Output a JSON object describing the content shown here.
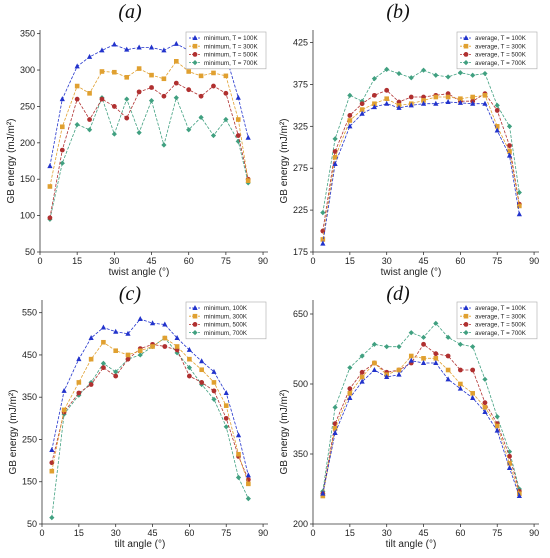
{
  "chart_data": [
    {
      "id": "a",
      "panel_label": "(a)",
      "type": "line",
      "xlabel": "twist angle (°)",
      "ylabel": "GB energy (mJ/m²)",
      "xlim": [
        0,
        92
      ],
      "ylim": [
        50,
        355
      ],
      "xticks": [
        0,
        15,
        30,
        45,
        60,
        75,
        90
      ],
      "yticks": [
        50,
        100,
        150,
        200,
        250,
        300,
        350
      ],
      "legend_position": "top-right",
      "x": [
        4,
        9,
        15,
        20,
        25,
        30,
        35,
        40,
        45,
        50,
        55,
        60,
        65,
        70,
        75,
        80,
        84
      ],
      "series": [
        {
          "name": "minimum, T = 100K",
          "color": "#2233cc",
          "marker": "triangle",
          "values": [
            168,
            260,
            305,
            318,
            327,
            335,
            328,
            331,
            331,
            327,
            336,
            327,
            333,
            330,
            320,
            262,
            207
          ]
        },
        {
          "name": "minimum, T = 300K",
          "color": "#e0a030",
          "marker": "square",
          "values": [
            140,
            222,
            278,
            268,
            298,
            297,
            290,
            302,
            293,
            288,
            312,
            298,
            292,
            296,
            292,
            232,
            148
          ]
        },
        {
          "name": "minimum, T = 500K",
          "color": "#b03030",
          "marker": "circle",
          "values": [
            97,
            190,
            260,
            232,
            260,
            250,
            234,
            270,
            276,
            264,
            282,
            273,
            264,
            278,
            268,
            210,
            150
          ]
        },
        {
          "name": "minimum, T = 700K",
          "color": "#40a080",
          "marker": "diamond",
          "values": [
            95,
            172,
            225,
            218,
            262,
            212,
            260,
            214,
            258,
            197,
            262,
            218,
            235,
            210,
            232,
            202,
            145
          ]
        }
      ]
    },
    {
      "id": "b",
      "panel_label": "(b)",
      "type": "line",
      "xlabel": "twist angle (°)",
      "ylabel": "GB energy (mJ/m²)",
      "xlim": [
        0,
        92
      ],
      "ylim": [
        175,
        440
      ],
      "xticks": [
        0,
        15,
        30,
        45,
        60,
        75,
        90
      ],
      "yticks": [
        175,
        225,
        275,
        325,
        375,
        425
      ],
      "legend_position": "top-right",
      "x": [
        4,
        9,
        15,
        20,
        25,
        30,
        35,
        40,
        45,
        50,
        55,
        60,
        65,
        70,
        75,
        80,
        84
      ],
      "series": [
        {
          "name": "average, T = 100K",
          "color": "#2233cc",
          "marker": "triangle",
          "values": [
            185,
            280,
            325,
            340,
            348,
            352,
            347,
            350,
            352,
            352,
            354,
            353,
            352,
            352,
            320,
            290,
            220
          ]
        },
        {
          "name": "average, T = 300K",
          "color": "#e0a030",
          "marker": "square",
          "values": [
            190,
            288,
            332,
            345,
            352,
            358,
            350,
            352,
            356,
            360,
            360,
            358,
            360,
            362,
            325,
            295,
            230
          ]
        },
        {
          "name": "average, T = 500K",
          "color": "#b03030",
          "marker": "circle",
          "values": [
            200,
            295,
            338,
            352,
            362,
            368,
            354,
            360,
            360,
            362,
            364,
            355,
            355,
            364,
            344,
            302,
            232
          ]
        },
        {
          "name": "average, T = 700K",
          "color": "#40a080",
          "marker": "diamond",
          "values": [
            222,
            310,
            362,
            355,
            382,
            393,
            388,
            383,
            392,
            386,
            384,
            389,
            386,
            388,
            350,
            325,
            246
          ]
        }
      ]
    },
    {
      "id": "c",
      "panel_label": "(c)",
      "type": "line",
      "xlabel": "tilt angle (°)",
      "ylabel": "GB energy (mJ/m²)",
      "xlim": [
        0,
        92
      ],
      "ylim": [
        50,
        580
      ],
      "xticks": [
        0,
        15,
        30,
        45,
        60,
        75,
        90
      ],
      "yticks": [
        50,
        150,
        250,
        350,
        450,
        550
      ],
      "legend_position": "top-right",
      "x": [
        4,
        9,
        15,
        20,
        25,
        30,
        35,
        40,
        45,
        50,
        55,
        60,
        65,
        70,
        75,
        80,
        84
      ],
      "series": [
        {
          "name": "minimum, 100K",
          "color": "#2233cc",
          "marker": "triangle",
          "values": [
            225,
            365,
            440,
            490,
            515,
            505,
            500,
            535,
            525,
            522,
            490,
            462,
            435,
            410,
            360,
            260,
            165
          ]
        },
        {
          "name": "minimum, 300K",
          "color": "#e0a030",
          "marker": "square",
          "values": [
            175,
            320,
            385,
            440,
            480,
            460,
            450,
            460,
            470,
            490,
            470,
            440,
            415,
            385,
            330,
            215,
            145
          ]
        },
        {
          "name": "minimum, 500K",
          "color": "#b03030",
          "marker": "circle",
          "values": [
            195,
            315,
            360,
            380,
            420,
            400,
            440,
            465,
            475,
            470,
            462,
            400,
            385,
            365,
            300,
            210,
            155
          ]
        },
        {
          "name": "minimum, 700K",
          "color": "#40a080",
          "marker": "diamond",
          "values": [
            65,
            310,
            355,
            385,
            430,
            410,
            440,
            450,
            470,
            490,
            455,
            420,
            380,
            345,
            280,
            160,
            110
          ]
        }
      ]
    },
    {
      "id": "d",
      "panel_label": "(d)",
      "type": "line",
      "xlabel": "tilt angle (°)",
      "ylabel": "GB energy (mJ/m²)",
      "xlim": [
        0,
        92
      ],
      "ylim": [
        200,
        680
      ],
      "xticks": [
        0,
        15,
        30,
        45,
        60,
        75,
        90
      ],
      "yticks": [
        200,
        350,
        500,
        650
      ],
      "legend_position": "top-right",
      "x": [
        4,
        9,
        15,
        20,
        25,
        30,
        35,
        40,
        45,
        50,
        55,
        60,
        65,
        70,
        75,
        80,
        84
      ],
      "series": [
        {
          "name": "average, T = 100K",
          "color": "#2233cc",
          "marker": "triangle",
          "values": [
            265,
            395,
            470,
            505,
            530,
            515,
            520,
            550,
            545,
            545,
            510,
            490,
            470,
            440,
            400,
            320,
            260
          ]
        },
        {
          "name": "average, T = 300K",
          "color": "#e0a030",
          "marker": "square",
          "values": [
            260,
            405,
            480,
            515,
            545,
            520,
            530,
            560,
            555,
            555,
            530,
            500,
            480,
            450,
            410,
            330,
            265
          ]
        },
        {
          "name": "average, T = 500K",
          "color": "#b03030",
          "marker": "circle",
          "values": [
            265,
            415,
            490,
            525,
            545,
            525,
            530,
            545,
            585,
            565,
            560,
            530,
            530,
            460,
            415,
            345,
            270
          ]
        },
        {
          "name": "average, T = 700K",
          "color": "#40a080",
          "marker": "diamond",
          "values": [
            270,
            450,
            535,
            560,
            585,
            580,
            580,
            610,
            600,
            630,
            600,
            585,
            580,
            510,
            430,
            355,
            275
          ]
        }
      ]
    }
  ]
}
